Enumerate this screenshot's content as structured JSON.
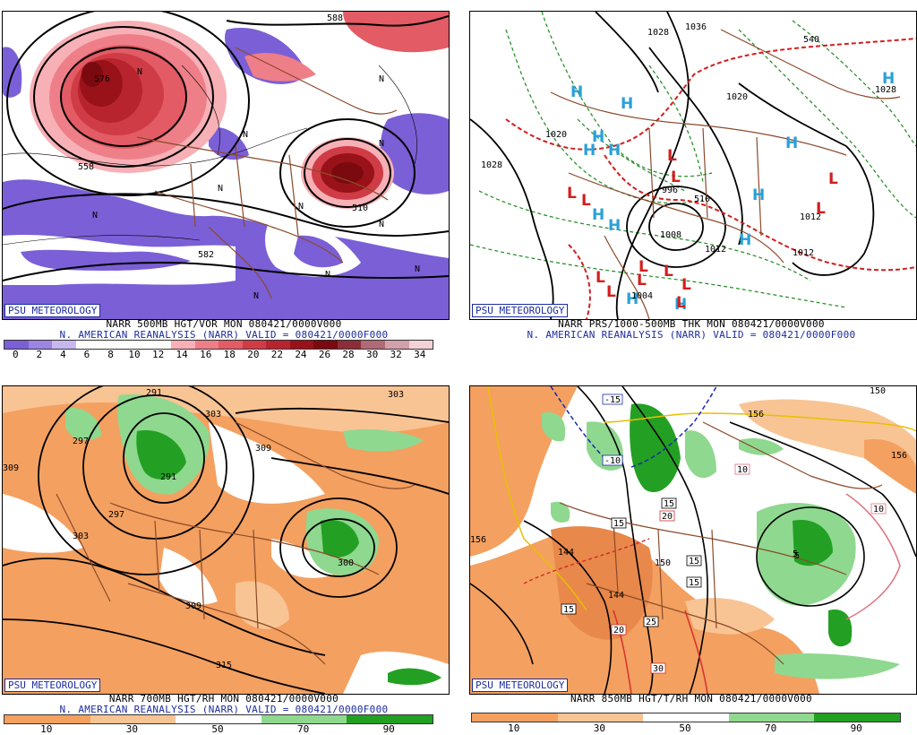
{
  "badge": "PSU METEOROLOGY",
  "panels": {
    "vort": {
      "line1": "NARR 500MB HGT/VOR MON 080421/0000V000",
      "line2": "N. AMERICAN REANALYSIS (NARR) VALID = 080421/0000F000",
      "scale": [
        "0",
        "2",
        "4",
        "6",
        "8",
        "10",
        "12",
        "14",
        "16",
        "18",
        "20",
        "22",
        "24",
        "26",
        "28",
        "30",
        "32",
        "34"
      ],
      "scale_colors": [
        "#7b5fd6",
        "#9c85e2",
        "#c6b8ef",
        "#ffffff",
        "#ffffff",
        "#ffffff",
        "#ffffff",
        "#f7b0b6",
        "#ee7f88",
        "#e25b65",
        "#cf3c46",
        "#b8242e",
        "#9a1219",
        "#7a0a10",
        "#8c2d3a",
        "#b06a76",
        "#d2a0aa",
        "#f2d2d8"
      ],
      "labels": [
        "588",
        "576",
        "558",
        "510",
        "582",
        "N",
        "N",
        "N",
        "N",
        "N",
        "N",
        "N",
        "N",
        "N",
        "N",
        "N"
      ]
    },
    "sfc": {
      "line1": "NARR PRS/1000-500MB THK MON 080421/0000V000",
      "line2": "N. AMERICAN REANALYSIS (NARR) VALID = 080421/0000F000",
      "highs": [
        "H",
        "H",
        "H",
        "H",
        "H",
        "H",
        "H",
        "H",
        "H",
        "H",
        "H",
        "H",
        "H",
        "H"
      ],
      "lows": [
        "L",
        "L",
        "L",
        "L",
        "L",
        "L",
        "L",
        "L",
        "L",
        "L",
        "L",
        "L",
        "L",
        "L"
      ],
      "labels": [
        "1036",
        "1028",
        "1020",
        "1028",
        "1020",
        "1028",
        "1008",
        "996",
        "1004",
        "1012",
        "1012",
        "540",
        "510",
        "1012"
      ]
    },
    "rh700": {
      "line1": "NARR 700MB HGT/RH MON 080421/0000V000",
      "line2": "N. AMERICAN REANALYSIS (NARR) VALID = 080421/0000F000",
      "scale": [
        "10",
        "30",
        "50",
        "70",
        "90"
      ],
      "scale_colors": [
        "#f4a060",
        "#f8c494",
        "#ffffff",
        "#8fd88f",
        "#23a023"
      ],
      "labels": [
        "291",
        "303",
        "297",
        "303",
        "309",
        "303",
        "297",
        "291",
        "309",
        "300",
        "315",
        "309"
      ]
    },
    "t850": {
      "line1": "NARR 850MB HGT/T/RH MON 080421/0000V000",
      "scale": [
        "10",
        "30",
        "50",
        "70",
        "90"
      ],
      "scale_colors": [
        "#f4a060",
        "#f8c494",
        "#ffffff",
        "#8fd88f",
        "#23a023"
      ],
      "labels": [
        "156",
        "150",
        "156",
        "156",
        "144",
        "144",
        "150",
        "-15",
        "-10",
        "15",
        "15",
        "20",
        "15",
        "15",
        "25",
        "20",
        "30",
        "10",
        "10",
        "5",
        "5",
        "15"
      ]
    }
  }
}
